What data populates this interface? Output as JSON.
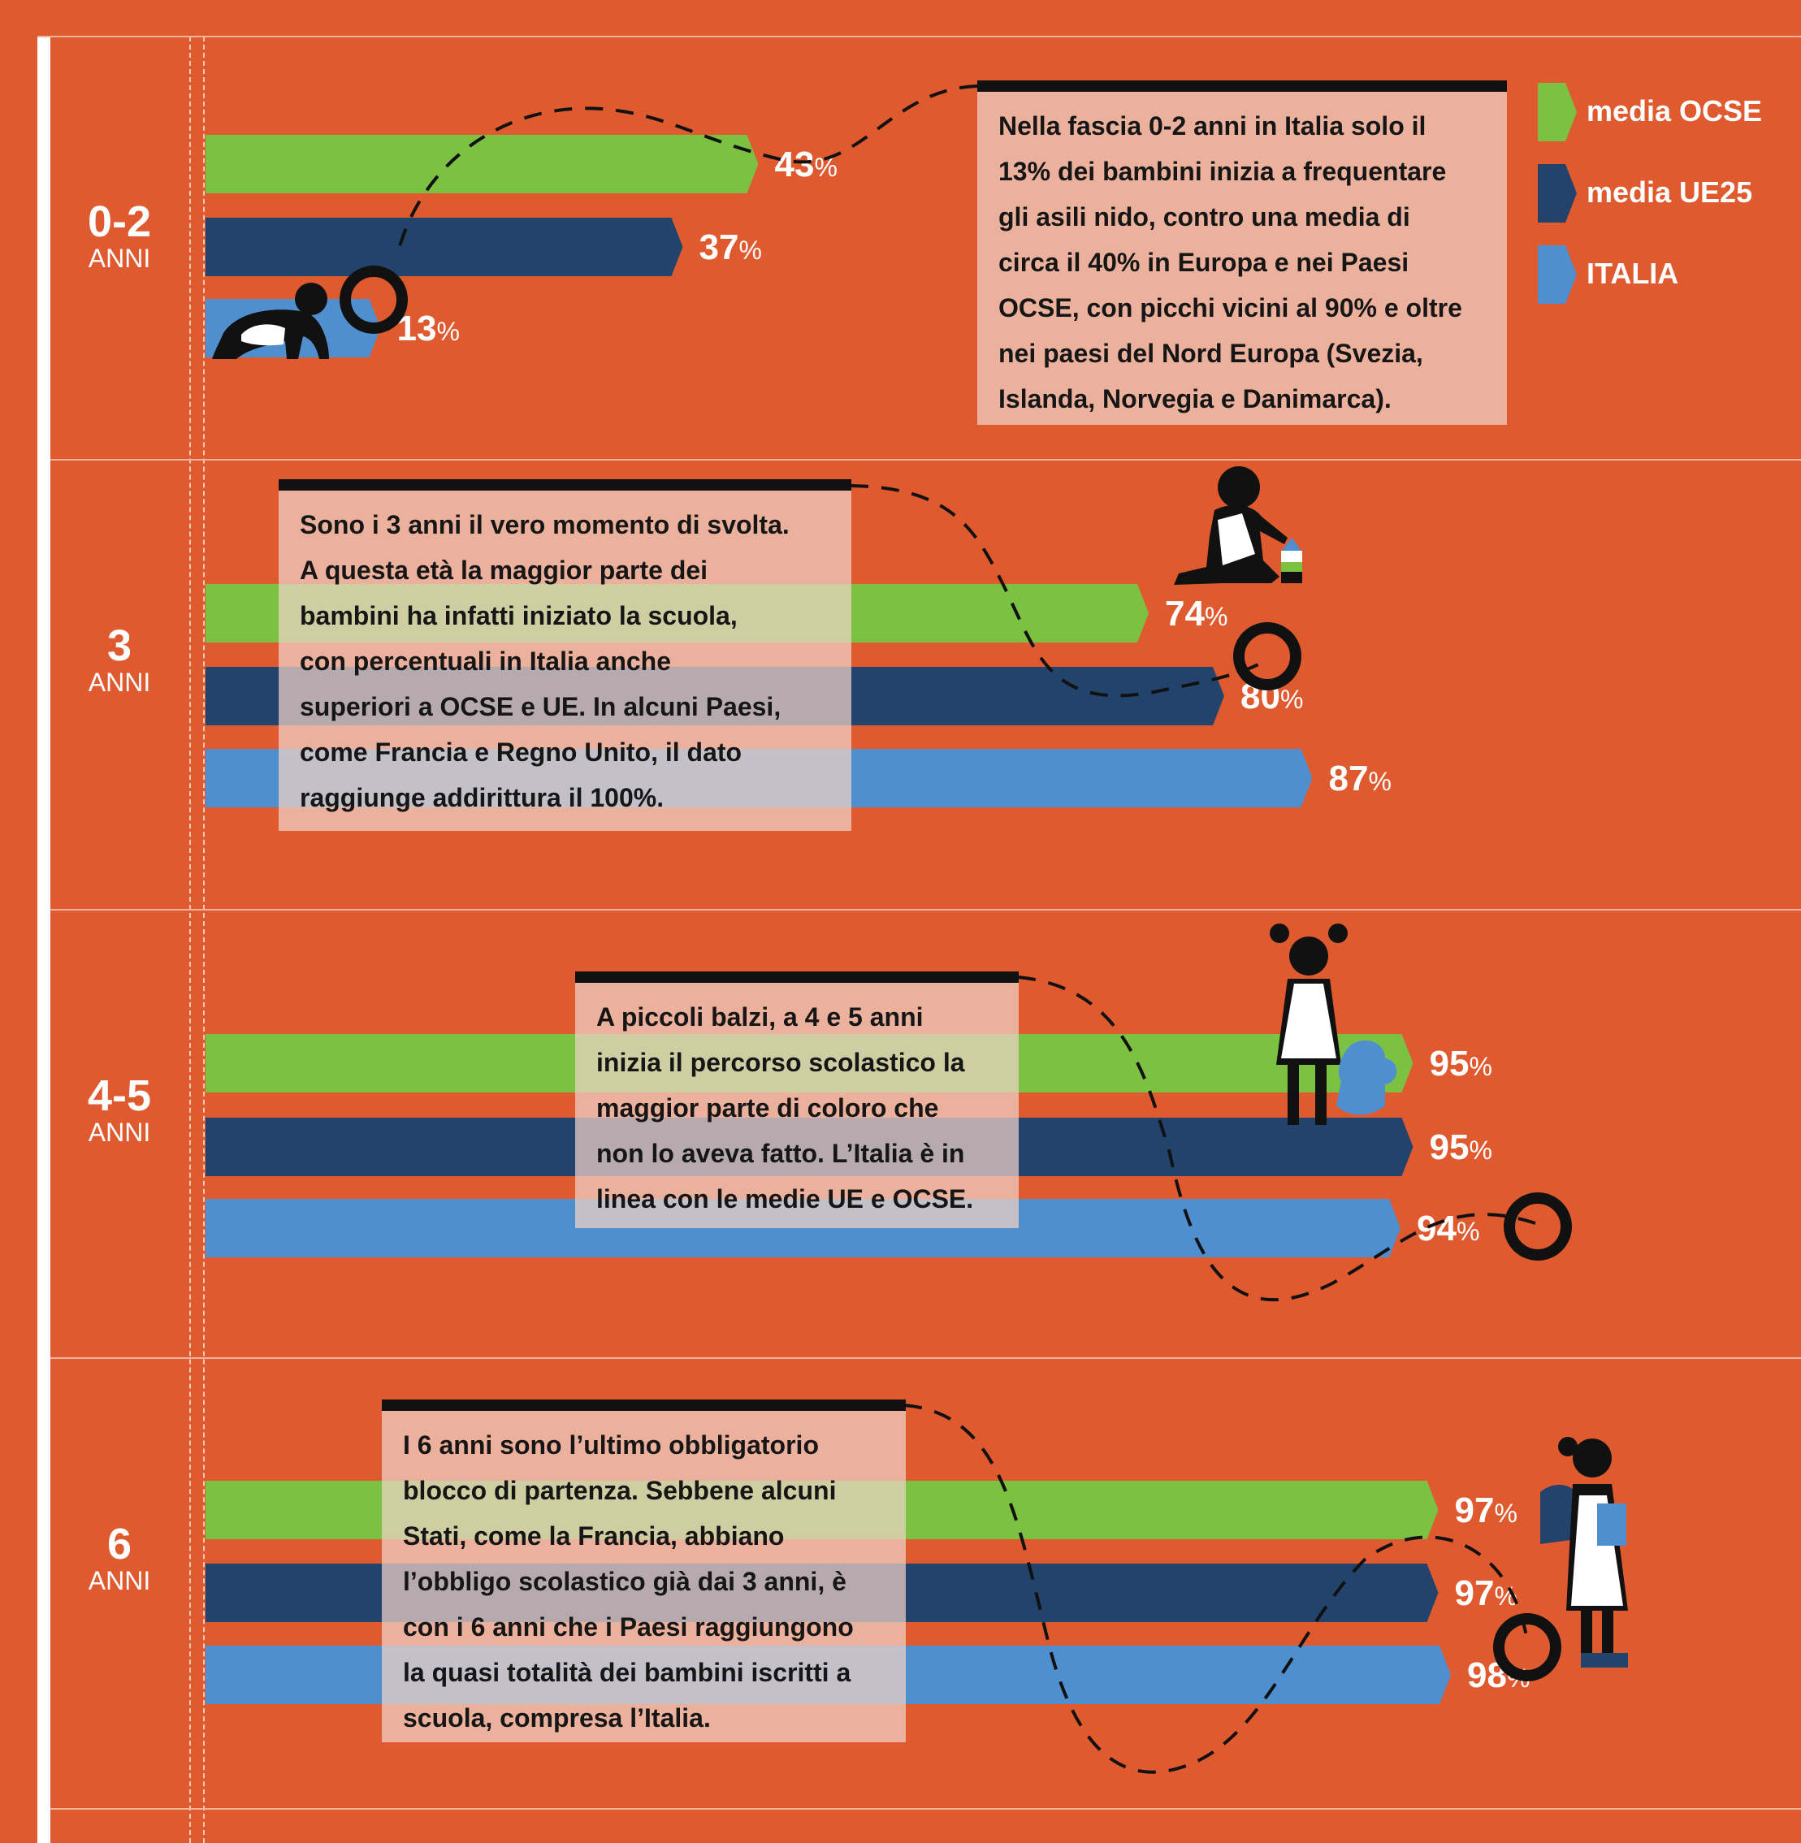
{
  "colors": {
    "background": "#e05a2f",
    "ocse": "#7bc142",
    "ue25": "#22436b",
    "italia": "#4f8fcf",
    "text_box": "#f0d2c8",
    "ink": "#111111"
  },
  "legend": [
    {
      "key": "ocse",
      "label": "media OCSE"
    },
    {
      "key": "ue25",
      "label": "media UE25"
    },
    {
      "key": "italia",
      "label": "ITALIA"
    }
  ],
  "chart_data": {
    "type": "bar",
    "orientation": "horizontal",
    "categories": [
      "0-2",
      "3",
      "4-5",
      "6"
    ],
    "category_sublabel": "ANNI",
    "value_suffix": "%",
    "xlim": [
      0,
      100
    ],
    "series": [
      {
        "key": "ocse",
        "name": "media OCSE",
        "values": [
          43,
          74,
          95,
          97
        ]
      },
      {
        "key": "ue25",
        "name": "media UE25",
        "values": [
          37,
          80,
          95,
          97
        ]
      },
      {
        "key": "italia",
        "name": "ITALIA",
        "values": [
          13,
          87,
          94,
          98
        ]
      }
    ],
    "legend_position": "top-right"
  },
  "notes": [
    "Nella fascia 0-2 anni in Italia solo il\n13% dei bambini inizia a frequentare\ngli asili nido, contro una media di\ncirca il 40% in Europa e nei Paesi\nOCSE, con picchi vicini al 90% e oltre\nnei paesi del Nord Europa (Svezia,\nIslanda, Norvegia e Danimarca).",
    "Sono i 3 anni il vero momento di svolta.\nA questa età la maggior parte dei\nbambini ha infatti iniziato la scuola,\ncon percentuali in Italia anche\nsuperiori a OCSE e UE. In alcuni Paesi,\ncome Francia e Regno Unito, il dato\nraggiunge addirittura il 100%.",
    "A piccoli balzi, a 4 e 5 anni\ninizia il percorso scolastico la\nmaggior parte di coloro che\nnon lo aveva fatto. L’Italia è in\nlinea con le medie UE e OCSE.",
    "I 6 anni sono l’ultimo obbligatorio\nblocco di partenza. Sebbene alcuni\nStati, come la Francia, abbiano\nl’obbligo scolastico già dai 3 anni, è\ncon i 6 anni che i Paesi raggiungono\nla quasi totalità dei bambini iscritti a\nscuola, compresa l’Italia."
  ],
  "illustrations": [
    "crawling-baby-icon",
    "toddler-with-blocks-icon",
    "girl-with-teddy-icon",
    "schoolgirl-with-backpack-icon",
    "ring-marker-icon"
  ]
}
